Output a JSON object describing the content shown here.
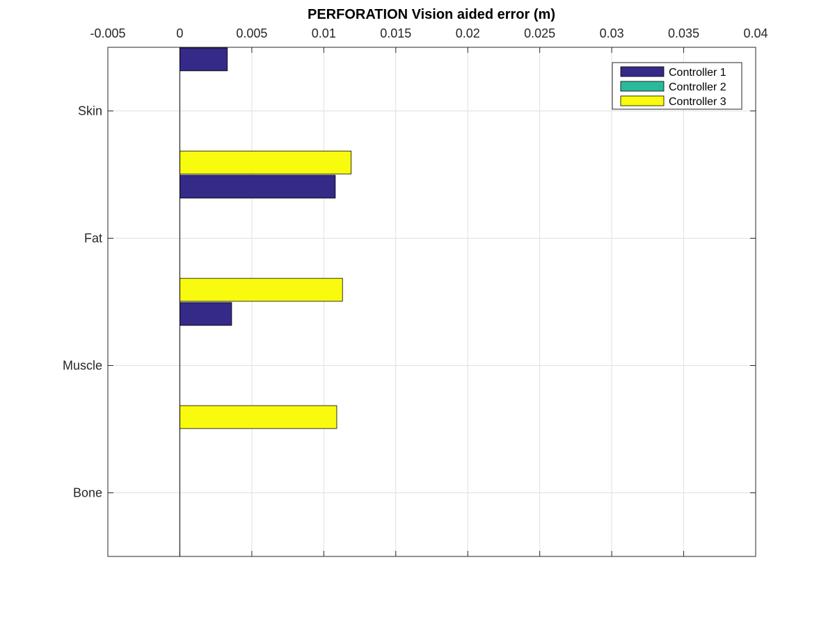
{
  "chart_data": {
    "type": "bar",
    "orientation": "horizontal",
    "title": "PERFORATION Vision aided error (m)",
    "xlabel": "",
    "ylabel": "",
    "x_axis_location": "top",
    "xlim": [
      -0.005,
      0.04
    ],
    "xticks": [
      "-0.005",
      "0",
      "0.005",
      "0.01",
      "0.015",
      "0.02",
      "0.025",
      "0.03",
      "0.035",
      "0.04"
    ],
    "categories": [
      "Skin",
      "Fat",
      "Muscle",
      "Bone"
    ],
    "series": [
      {
        "name": "Controller 1",
        "color": "#352a87",
        "values": [
          0.0033,
          0.0108,
          0.0036,
          0
        ]
      },
      {
        "name": "Controller 2",
        "color": "#2bb99b",
        "values": [
          0,
          0,
          0,
          0
        ]
      },
      {
        "name": "Controller 3",
        "color": "#f9fb0e",
        "values": [
          0.0119,
          0.0113,
          0.0109,
          0
        ]
      }
    ],
    "grid": true,
    "legend_position": "top-right"
  }
}
